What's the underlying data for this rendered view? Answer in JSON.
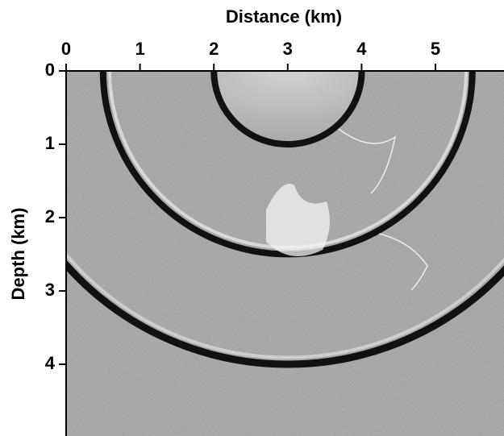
{
  "chart_data": {
    "type": "image",
    "xlabel": "Distance (km)",
    "ylabel": "Depth (km)",
    "xlim": [
      0,
      5.9
    ],
    "ylim": [
      0,
      4.95
    ],
    "xticks": [
      0,
      1,
      2,
      3,
      4,
      5
    ],
    "yticks": [
      0,
      1,
      2,
      3,
      4
    ]
  }
}
